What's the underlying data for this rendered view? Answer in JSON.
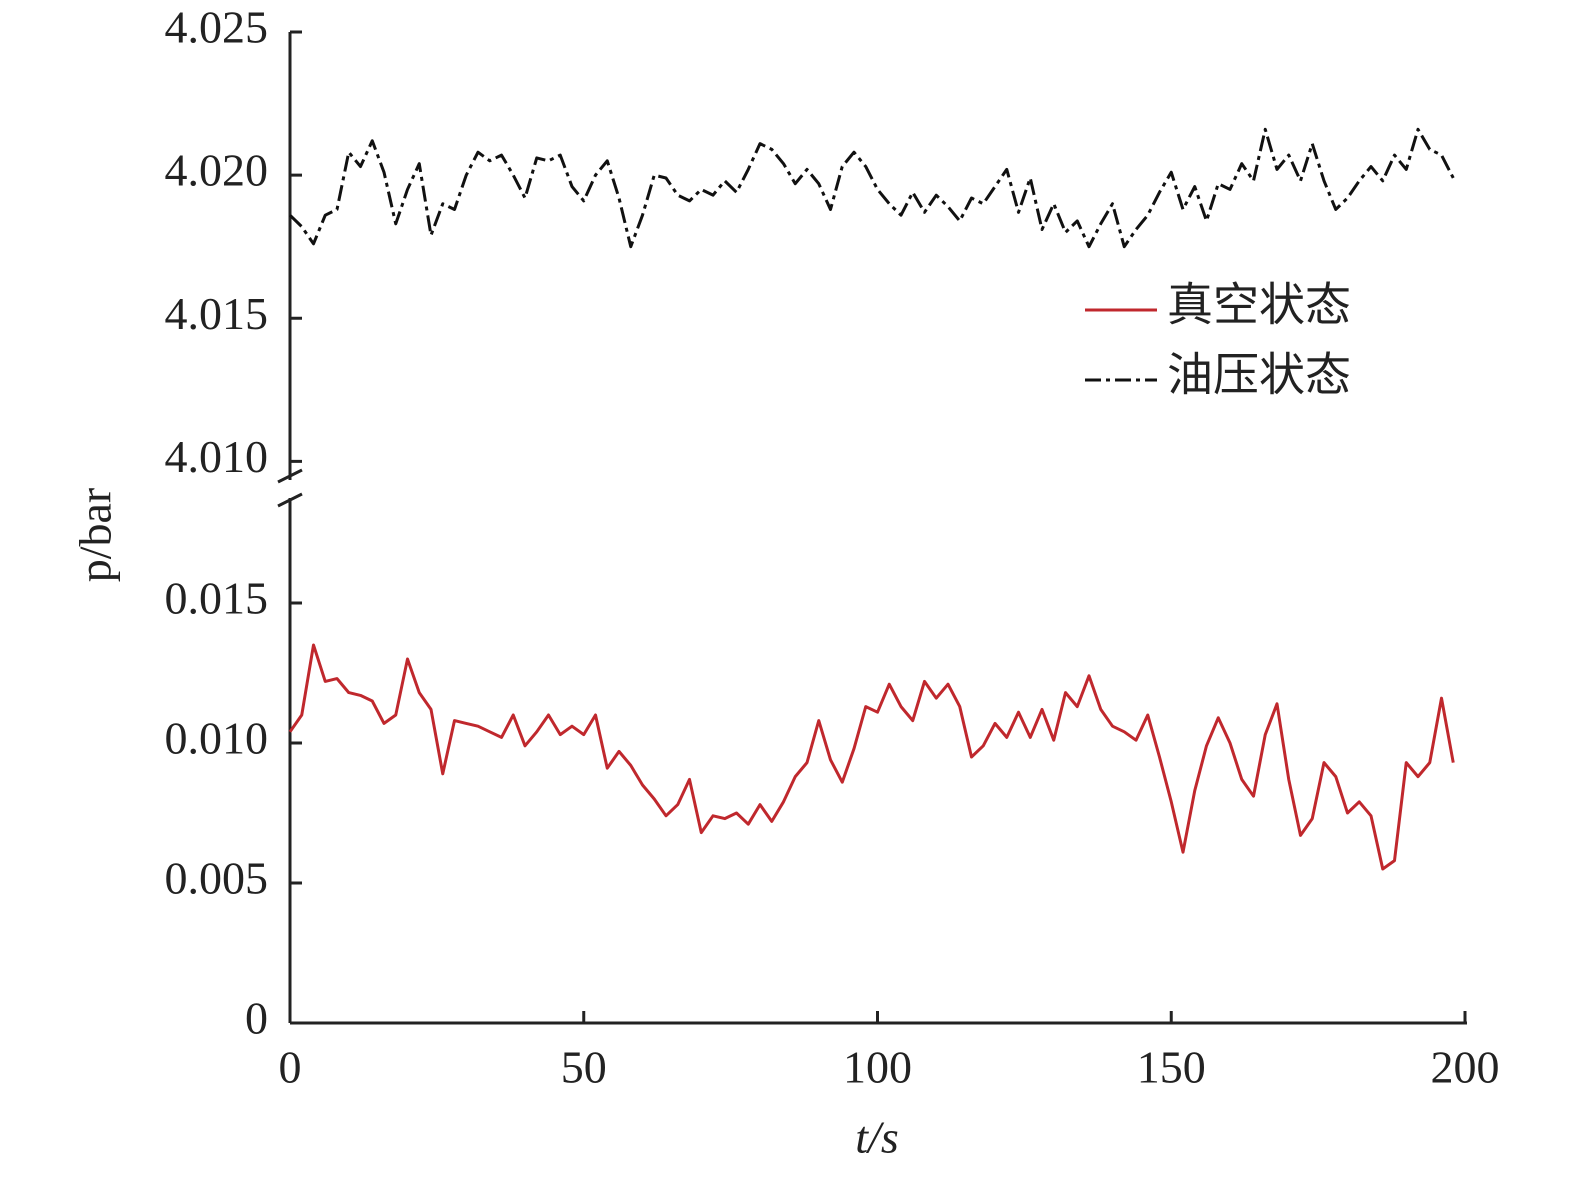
{
  "chart_data": {
    "type": "line",
    "xlabel": "t/s",
    "ylabel": "p/bar",
    "x": [
      0,
      2,
      4,
      6,
      8,
      10,
      12,
      14,
      16,
      18,
      20,
      22,
      24,
      26,
      28,
      30,
      32,
      34,
      36,
      38,
      40,
      42,
      44,
      46,
      48,
      50,
      52,
      54,
      56,
      58,
      60,
      62,
      64,
      66,
      68,
      70,
      72,
      74,
      76,
      78,
      80,
      82,
      84,
      86,
      88,
      90,
      92,
      94,
      96,
      98,
      100,
      102,
      104,
      106,
      108,
      110,
      112,
      114,
      116,
      118,
      120,
      122,
      124,
      126,
      128,
      130,
      132,
      134,
      136,
      138,
      140,
      142,
      144,
      146,
      148,
      150,
      152,
      154,
      156,
      158,
      160,
      162,
      164,
      166,
      168,
      170,
      172,
      174,
      176,
      178,
      180,
      182,
      184,
      186,
      188,
      190,
      192,
      194,
      196,
      198
    ],
    "xlim": [
      0,
      200
    ],
    "xticks": [
      0,
      50,
      100,
      150,
      200
    ],
    "ylim": [
      0,
      0.0185
    ],
    "yticks": [
      0,
      0.005,
      {
        "value": 0.01,
        "label": "0.010"
      },
      0.015
    ],
    "y2lim": [
      4.009,
      4.025
    ],
    "y2ticks": [
      {
        "value": 4.01,
        "label": "4.010"
      },
      4.015,
      {
        "value": 4.02,
        "label": "4.020"
      },
      4.025
    ],
    "legend": "upper right",
    "series": [
      {
        "name": "真空状态",
        "color": "#c0282d",
        "style": "solid",
        "values": [
          0.0104,
          0.011,
          0.0135,
          0.0122,
          0.0123,
          0.0118,
          0.0117,
          0.0115,
          0.0107,
          0.011,
          0.013,
          0.0118,
          0.0112,
          0.0089,
          0.0108,
          0.0107,
          0.0106,
          0.0104,
          0.0102,
          0.011,
          0.0099,
          0.0104,
          0.011,
          0.0103,
          0.0106,
          0.0103,
          0.011,
          0.0091,
          0.0097,
          0.0092,
          0.0085,
          0.008,
          0.0074,
          0.0078,
          0.0087,
          0.0068,
          0.0074,
          0.0073,
          0.0075,
          0.0071,
          0.0078,
          0.0072,
          0.0079,
          0.0088,
          0.0093,
          0.0108,
          0.0094,
          0.0086,
          0.0098,
          0.0113,
          0.0111,
          0.0121,
          0.0113,
          0.0108,
          0.0122,
          0.0116,
          0.0121,
          0.0113,
          0.0095,
          0.0099,
          0.0107,
          0.0102,
          0.0111,
          0.0102,
          0.0112,
          0.0101,
          0.0118,
          0.0113,
          0.0124,
          0.0112,
          0.0106,
          0.0104,
          0.0101,
          0.011,
          0.0095,
          0.0079,
          0.0061,
          0.0083,
          0.0099,
          0.0109,
          0.01,
          0.0087,
          0.0081,
          0.0103,
          0.0114,
          0.0087,
          0.0067,
          0.0073,
          0.0093,
          0.0088,
          0.0075,
          0.0079,
          0.0074,
          0.0055,
          0.0058,
          0.0093,
          0.0088,
          0.0093,
          0.0116,
          0.0093
        ]
      },
      {
        "name": "油压状态",
        "color": "#111111",
        "style": "dashdot",
        "axis": "y2",
        "values": [
          4.0186,
          4.0182,
          4.0176,
          4.0186,
          4.0188,
          4.0208,
          4.0203,
          4.0212,
          4.0201,
          4.0183,
          4.0195,
          4.0204,
          4.0179,
          4.019,
          4.0188,
          4.02,
          4.0208,
          4.0205,
          4.0207,
          4.02,
          4.0192,
          4.0206,
          4.0205,
          4.0207,
          4.0196,
          4.0191,
          4.02,
          4.0205,
          4.0192,
          4.0175,
          4.0186,
          4.02,
          4.0199,
          4.0193,
          4.0191,
          4.0195,
          4.0193,
          4.0198,
          4.0194,
          4.0202,
          4.0211,
          4.0209,
          4.0204,
          4.0197,
          4.0202,
          4.0197,
          4.0188,
          4.0203,
          4.0208,
          4.0203,
          4.0195,
          4.019,
          4.0186,
          4.0194,
          4.0187,
          4.0193,
          4.0189,
          4.0184,
          4.0192,
          4.019,
          4.0196,
          4.0202,
          4.0187,
          4.0199,
          4.0181,
          4.019,
          4.018,
          4.0184,
          4.0175,
          4.0183,
          4.019,
          4.0175,
          4.0181,
          4.0186,
          4.0194,
          4.0201,
          4.0188,
          4.0196,
          4.0184,
          4.0197,
          4.0195,
          4.0204,
          4.0198,
          4.0216,
          4.0202,
          4.0207,
          4.0198,
          4.0211,
          4.0198,
          4.0188,
          4.0192,
          4.0198,
          4.0203,
          4.0198,
          4.0207,
          4.0202,
          4.0216,
          4.0209,
          4.0207,
          4.0199
        ]
      }
    ]
  }
}
